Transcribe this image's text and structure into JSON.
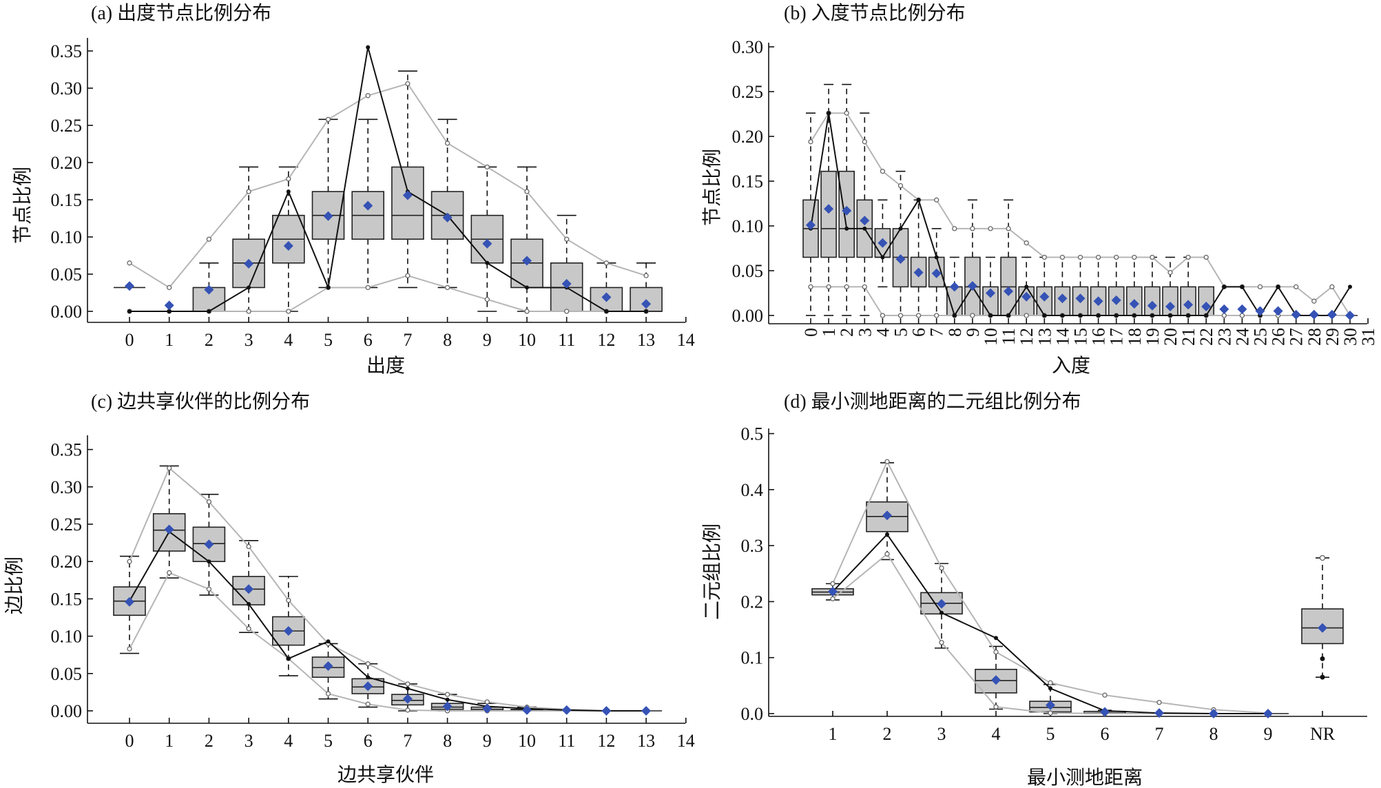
{
  "chart_data": [
    {
      "type": "box",
      "id": "a",
      "title": "(a) 出度节点比例分布",
      "xlabel": "出度",
      "ylabel": "节点比例",
      "xlim": [
        -0.5,
        14
      ],
      "ylim": [
        0,
        0.35
      ],
      "xticks": [
        "0",
        "1",
        "2",
        "3",
        "4",
        "5",
        "6",
        "7",
        "8",
        "9",
        "10",
        "11",
        "12",
        "13",
        "14"
      ],
      "yticks": [
        "0.00",
        "0.05",
        "0.10",
        "0.15",
        "0.20",
        "0.25",
        "0.30",
        "0.35"
      ],
      "categories": [
        0,
        1,
        2,
        3,
        4,
        5,
        6,
        7,
        8,
        9,
        10,
        11,
        12,
        13
      ],
      "boxes": [
        {
          "x": 0,
          "q1": 0.032,
          "med": 0.032,
          "q3": 0.032,
          "wlo": 0.032,
          "whi": 0.032,
          "mean": 0.034
        },
        {
          "x": 1,
          "q1": 0,
          "med": 0,
          "q3": 0,
          "wlo": 0,
          "whi": 0,
          "mean": 0.008
        },
        {
          "x": 2,
          "q1": 0,
          "med": 0,
          "q3": 0.032,
          "wlo": 0,
          "whi": 0.065,
          "mean": 0.029
        },
        {
          "x": 3,
          "q1": 0.032,
          "med": 0.065,
          "q3": 0.097,
          "wlo": 0,
          "whi": 0.194,
          "mean": 0.064
        },
        {
          "x": 4,
          "q1": 0.065,
          "med": 0.097,
          "q3": 0.129,
          "wlo": 0,
          "whi": 0.194,
          "mean": 0.088
        },
        {
          "x": 5,
          "q1": 0.097,
          "med": 0.129,
          "q3": 0.161,
          "wlo": 0.032,
          "whi": 0.258,
          "mean": 0.128
        },
        {
          "x": 6,
          "q1": 0.097,
          "med": 0.129,
          "q3": 0.161,
          "wlo": 0.032,
          "whi": 0.258,
          "mean": 0.142
        },
        {
          "x": 7,
          "q1": 0.097,
          "med": 0.129,
          "q3": 0.194,
          "wlo": 0.032,
          "whi": 0.323,
          "mean": 0.156
        },
        {
          "x": 8,
          "q1": 0.097,
          "med": 0.129,
          "q3": 0.161,
          "wlo": 0.032,
          "whi": 0.258,
          "mean": 0.126
        },
        {
          "x": 9,
          "q1": 0.065,
          "med": 0.097,
          "q3": 0.129,
          "wlo": 0,
          "whi": 0.194,
          "mean": 0.091
        },
        {
          "x": 10,
          "q1": 0.032,
          "med": 0.065,
          "q3": 0.097,
          "wlo": 0,
          "whi": 0.194,
          "mean": 0.068
        },
        {
          "x": 11,
          "q1": 0,
          "med": 0.032,
          "q3": 0.065,
          "wlo": 0,
          "whi": 0.129,
          "mean": 0.037
        },
        {
          "x": 12,
          "q1": 0,
          "med": 0,
          "q3": 0.032,
          "wlo": 0,
          "whi": 0.065,
          "mean": 0.019
        },
        {
          "x": 13,
          "q1": 0,
          "med": 0,
          "q3": 0.032,
          "wlo": 0,
          "whi": 0.065,
          "mean": 0.01
        }
      ],
      "line_max": [
        0.065,
        0.032,
        0.097,
        0.161,
        0.178,
        0.258,
        0.29,
        0.306,
        0.226,
        0.194,
        0.161,
        0.097,
        0.065,
        0.048
      ],
      "line_min": [
        0,
        0,
        0,
        0,
        0,
        0.032,
        0.032,
        0.048,
        0.032,
        0.016,
        0,
        0,
        0,
        0
      ],
      "line_observed": [
        0,
        0,
        0,
        0.032,
        0.161,
        0.032,
        0.355,
        0.161,
        0.129,
        0.065,
        0.032,
        0.032,
        0,
        0
      ]
    },
    {
      "type": "box",
      "id": "b",
      "title": "(b) 入度节点比例分布",
      "xlabel": "入度",
      "ylabel": "节点比例",
      "xlim": [
        -0.5,
        31
      ],
      "ylim": [
        0,
        0.3
      ],
      "xticks": [
        "0",
        "1",
        "2",
        "3",
        "4",
        "5",
        "6",
        "7",
        "8",
        "9",
        "10",
        "11",
        "12",
        "13",
        "14",
        "15",
        "16",
        "17",
        "18",
        "19",
        "20",
        "21",
        "22",
        "23",
        "24",
        "25",
        "26",
        "27",
        "28",
        "29",
        "30",
        "31"
      ],
      "yticks": [
        "0.00",
        "0.05",
        "0.10",
        "0.15",
        "0.20",
        "0.25",
        "0.30"
      ],
      "boxes": [
        {
          "x": 0,
          "q1": 0.065,
          "med": 0.097,
          "q3": 0.129,
          "wlo": 0,
          "whi": 0.226,
          "mean": 0.101
        },
        {
          "x": 1,
          "q1": 0.065,
          "med": 0.097,
          "q3": 0.161,
          "wlo": 0,
          "whi": 0.258,
          "mean": 0.119
        },
        {
          "x": 2,
          "q1": 0.065,
          "med": 0.097,
          "q3": 0.161,
          "wlo": 0,
          "whi": 0.258,
          "mean": 0.117
        },
        {
          "x": 3,
          "q1": 0.065,
          "med": 0.097,
          "q3": 0.129,
          "wlo": 0,
          "whi": 0.226,
          "mean": 0.106
        },
        {
          "x": 4,
          "q1": 0.065,
          "med": 0.065,
          "q3": 0.097,
          "wlo": 0.032,
          "whi": 0.129,
          "mean": 0.081
        },
        {
          "x": 5,
          "q1": 0.032,
          "med": 0.065,
          "q3": 0.097,
          "wlo": 0,
          "whi": 0.161,
          "mean": 0.063
        },
        {
          "x": 6,
          "q1": 0.032,
          "med": 0.032,
          "q3": 0.065,
          "wlo": 0,
          "whi": 0.129,
          "mean": 0.048
        },
        {
          "x": 7,
          "q1": 0.032,
          "med": 0.032,
          "q3": 0.065,
          "wlo": 0,
          "whi": 0.097,
          "mean": 0.047
        },
        {
          "x": 8,
          "q1": 0,
          "med": 0.032,
          "q3": 0.032,
          "wlo": 0,
          "whi": 0.065,
          "mean": 0.032
        },
        {
          "x": 9,
          "q1": 0,
          "med": 0.032,
          "q3": 0.065,
          "wlo": 0,
          "whi": 0.129,
          "mean": 0.033
        },
        {
          "x": 10,
          "q1": 0,
          "med": 0,
          "q3": 0.032,
          "wlo": 0,
          "whi": 0.065,
          "mean": 0.025
        },
        {
          "x": 11,
          "q1": 0,
          "med": 0.032,
          "q3": 0.065,
          "wlo": 0,
          "whi": 0.129,
          "mean": 0.027
        },
        {
          "x": 12,
          "q1": 0,
          "med": 0,
          "q3": 0.032,
          "wlo": 0,
          "whi": 0.065,
          "mean": 0.021
        },
        {
          "x": 13,
          "q1": 0,
          "med": 0,
          "q3": 0.032,
          "wlo": 0,
          "whi": 0.065,
          "mean": 0.021
        },
        {
          "x": 14,
          "q1": 0,
          "med": 0,
          "q3": 0.032,
          "wlo": 0,
          "whi": 0.065,
          "mean": 0.019
        },
        {
          "x": 15,
          "q1": 0,
          "med": 0,
          "q3": 0.032,
          "wlo": 0,
          "whi": 0.065,
          "mean": 0.019
        },
        {
          "x": 16,
          "q1": 0,
          "med": 0,
          "q3": 0.032,
          "wlo": 0,
          "whi": 0.065,
          "mean": 0.016
        },
        {
          "x": 17,
          "q1": 0,
          "med": 0,
          "q3": 0.032,
          "wlo": 0,
          "whi": 0.065,
          "mean": 0.017
        },
        {
          "x": 18,
          "q1": 0,
          "med": 0,
          "q3": 0.032,
          "wlo": 0,
          "whi": 0.065,
          "mean": 0.013
        },
        {
          "x": 19,
          "q1": 0,
          "med": 0,
          "q3": 0.032,
          "wlo": 0,
          "whi": 0.065,
          "mean": 0.011
        },
        {
          "x": 20,
          "q1": 0,
          "med": 0,
          "q3": 0.032,
          "wlo": 0,
          "whi": 0.065,
          "mean": 0.01
        },
        {
          "x": 21,
          "q1": 0,
          "med": 0,
          "q3": 0.032,
          "wlo": 0,
          "whi": 0.065,
          "mean": 0.012
        },
        {
          "x": 22,
          "q1": 0,
          "med": 0,
          "q3": 0.032,
          "wlo": 0,
          "whi": 0.032,
          "mean": 0.01
        },
        {
          "x": 23,
          "q1": 0,
          "med": 0,
          "q3": 0,
          "wlo": 0,
          "whi": 0,
          "mean": 0.007
        },
        {
          "x": 24,
          "q1": 0,
          "med": 0,
          "q3": 0,
          "wlo": 0,
          "whi": 0,
          "mean": 0.007
        },
        {
          "x": 25,
          "q1": 0,
          "med": 0,
          "q3": 0,
          "wlo": 0,
          "whi": 0,
          "mean": 0.005
        },
        {
          "x": 26,
          "q1": 0,
          "med": 0,
          "q3": 0,
          "wlo": 0,
          "whi": 0,
          "mean": 0.005
        },
        {
          "x": 27,
          "q1": 0,
          "med": 0,
          "q3": 0,
          "wlo": 0,
          "whi": 0,
          "mean": 0.001
        },
        {
          "x": 28,
          "q1": 0,
          "med": 0,
          "q3": 0,
          "wlo": 0,
          "whi": 0,
          "mean": 0.001
        },
        {
          "x": 29,
          "q1": 0,
          "med": 0,
          "q3": 0,
          "wlo": 0,
          "whi": 0,
          "mean": 0.001
        },
        {
          "x": 30,
          "q1": 0,
          "med": 0,
          "q3": 0,
          "wlo": 0,
          "whi": 0,
          "mean": 0.0
        }
      ],
      "line_max": [
        0.194,
        0.226,
        0.226,
        0.194,
        0.161,
        0.145,
        0.129,
        0.129,
        0.097,
        0.097,
        0.097,
        0.097,
        0.081,
        0.065,
        0.065,
        0.065,
        0.065,
        0.065,
        0.065,
        0.065,
        0.048,
        0.065,
        0.065,
        0.032,
        0.032,
        0.032,
        0.032,
        0.032,
        0.016,
        0.032,
        0.0
      ],
      "line_min": [
        0.032,
        0.032,
        0.032,
        0.032,
        0,
        0,
        0,
        0,
        0,
        0,
        0,
        0,
        0,
        0,
        0,
        0,
        0,
        0,
        0,
        0,
        0,
        0,
        0,
        0,
        0,
        0,
        0,
        0,
        0,
        0,
        0
      ],
      "line_observed": [
        0.097,
        0.226,
        0.097,
        0.097,
        0.065,
        0.097,
        0.129,
        0.065,
        0,
        0.032,
        0,
        0,
        0.032,
        0,
        0,
        0,
        0,
        0,
        0,
        0,
        0,
        0,
        0,
        0.032,
        0.032,
        0,
        0.032,
        0,
        0,
        0,
        0.032
      ]
    },
    {
      "type": "box",
      "id": "c",
      "title": "(c) 边共享伙伴的比例分布",
      "xlabel": "边共享伙伴",
      "ylabel": "边比例",
      "xlim": [
        -0.5,
        14
      ],
      "ylim": [
        0,
        0.35
      ],
      "xticks": [
        "0",
        "1",
        "2",
        "3",
        "4",
        "5",
        "6",
        "7",
        "8",
        "9",
        "10",
        "11",
        "12",
        "13",
        "14"
      ],
      "yticks": [
        "0.00",
        "0.05",
        "0.10",
        "0.15",
        "0.20",
        "0.25",
        "0.30",
        "0.35"
      ],
      "boxes": [
        {
          "x": 0,
          "q1": 0.128,
          "med": 0.147,
          "q3": 0.166,
          "wlo": 0.077,
          "whi": 0.207,
          "mean": 0.146
        },
        {
          "x": 1,
          "q1": 0.214,
          "med": 0.242,
          "q3": 0.264,
          "wlo": 0.178,
          "whi": 0.328,
          "mean": 0.243
        },
        {
          "x": 2,
          "q1": 0.2,
          "med": 0.224,
          "q3": 0.246,
          "wlo": 0.155,
          "whi": 0.29,
          "mean": 0.223
        },
        {
          "x": 3,
          "q1": 0.142,
          "med": 0.163,
          "q3": 0.18,
          "wlo": 0.105,
          "whi": 0.228,
          "mean": 0.163
        },
        {
          "x": 4,
          "q1": 0.088,
          "med": 0.107,
          "q3": 0.126,
          "wlo": 0.047,
          "whi": 0.18,
          "mean": 0.107
        },
        {
          "x": 5,
          "q1": 0.045,
          "med": 0.058,
          "q3": 0.072,
          "wlo": 0.016,
          "whi": 0.09,
          "mean": 0.06
        },
        {
          "x": 6,
          "q1": 0.023,
          "med": 0.032,
          "q3": 0.043,
          "wlo": 0.005,
          "whi": 0.063,
          "mean": 0.033
        },
        {
          "x": 7,
          "q1": 0.008,
          "med": 0.014,
          "q3": 0.022,
          "wlo": 0,
          "whi": 0.036,
          "mean": 0.016
        },
        {
          "x": 8,
          "q1": 0.002,
          "med": 0.005,
          "q3": 0.01,
          "wlo": 0,
          "whi": 0.022,
          "mean": 0.006
        },
        {
          "x": 9,
          "q1": 0,
          "med": 0.002,
          "q3": 0.005,
          "wlo": 0,
          "whi": 0.01,
          "mean": 0.003
        },
        {
          "x": 10,
          "q1": 0,
          "med": 0.001,
          "q3": 0.002,
          "wlo": 0,
          "whi": 0.005,
          "mean": 0.001
        },
        {
          "x": 11,
          "q1": 0,
          "med": 0,
          "q3": 0,
          "wlo": 0,
          "whi": 0,
          "mean": 0.001
        },
        {
          "x": 12,
          "q1": 0,
          "med": 0,
          "q3": 0,
          "wlo": 0,
          "whi": 0,
          "mean": 0.0
        },
        {
          "x": 13,
          "q1": 0,
          "med": 0,
          "q3": 0,
          "wlo": 0,
          "whi": 0,
          "mean": 0.0
        }
      ],
      "line_max": [
        0.2,
        0.325,
        0.28,
        0.22,
        0.148,
        0.09,
        0.063,
        0.036,
        0.022,
        0.012,
        0.005,
        0.002,
        0,
        0
      ],
      "line_min": [
        0.083,
        0.185,
        0.163,
        0.11,
        0.07,
        0.023,
        0.009,
        0.001,
        0,
        0,
        0,
        0,
        0,
        0
      ],
      "line_observed": [
        0.147,
        0.24,
        0.2,
        0.143,
        0.07,
        0.093,
        0.045,
        0.03,
        0.015,
        0.006,
        0.003,
        0.001,
        0,
        0
      ]
    },
    {
      "type": "box",
      "id": "d",
      "title": "(d) 最小测地距离的二元组比例分布",
      "xlabel": "最小测地距离",
      "ylabel": "二元组比例",
      "ylim": [
        0,
        0.5
      ],
      "xticks": [
        "1",
        "2",
        "3",
        "4",
        "5",
        "6",
        "7",
        "8",
        "9",
        "NR"
      ],
      "yticks": [
        "0.0",
        "0.1",
        "0.2",
        "0.3",
        "0.4",
        "0.5"
      ],
      "boxes": [
        {
          "x": 1,
          "q1": 0.212,
          "med": 0.217,
          "q3": 0.223,
          "wlo": 0.203,
          "whi": 0.232,
          "mean": 0.218
        },
        {
          "x": 2,
          "q1": 0.325,
          "med": 0.352,
          "q3": 0.378,
          "wlo": 0.275,
          "whi": 0.448,
          "mean": 0.354
        },
        {
          "x": 3,
          "q1": 0.178,
          "med": 0.197,
          "q3": 0.216,
          "wlo": 0.117,
          "whi": 0.268,
          "mean": 0.196
        },
        {
          "x": 4,
          "q1": 0.037,
          "med": 0.059,
          "q3": 0.079,
          "wlo": 0.008,
          "whi": 0.12,
          "mean": 0.06
        },
        {
          "x": 5,
          "q1": 0.003,
          "med": 0.011,
          "q3": 0.022,
          "wlo": 0,
          "whi": 0.052,
          "mean": 0.015
        },
        {
          "x": 6,
          "q1": 0,
          "med": 0.001,
          "q3": 0.004,
          "wlo": 0,
          "whi": 0.006,
          "mean": 0.003
        },
        {
          "x": 7,
          "q1": 0,
          "med": 0,
          "q3": 0,
          "wlo": 0,
          "whi": 0,
          "mean": 0.001
        },
        {
          "x": 8,
          "q1": 0,
          "med": 0,
          "q3": 0,
          "wlo": 0,
          "whi": 0,
          "mean": 0.0
        },
        {
          "x": 9,
          "q1": 0,
          "med": 0,
          "q3": 0,
          "wlo": 0,
          "whi": 0,
          "mean": 0.0
        },
        {
          "x": 10,
          "q1": 0.125,
          "med": 0.153,
          "q3": 0.187,
          "wlo": 0.065,
          "whi": 0.278,
          "mean": 0.153
        }
      ],
      "line_max": [
        0.232,
        0.45,
        0.26,
        0.11,
        0.055,
        0.033,
        0.02,
        0.007,
        0.001
      ],
      "line_min": [
        0.205,
        0.285,
        0.127,
        0.012,
        0.001,
        0,
        0,
        0,
        0
      ],
      "line_observed": [
        0.218,
        0.32,
        0.18,
        0.135,
        0.045,
        0.005,
        0.001,
        0,
        0
      ],
      "nr_points": [
        0.278,
        0.098,
        0.065
      ]
    }
  ]
}
